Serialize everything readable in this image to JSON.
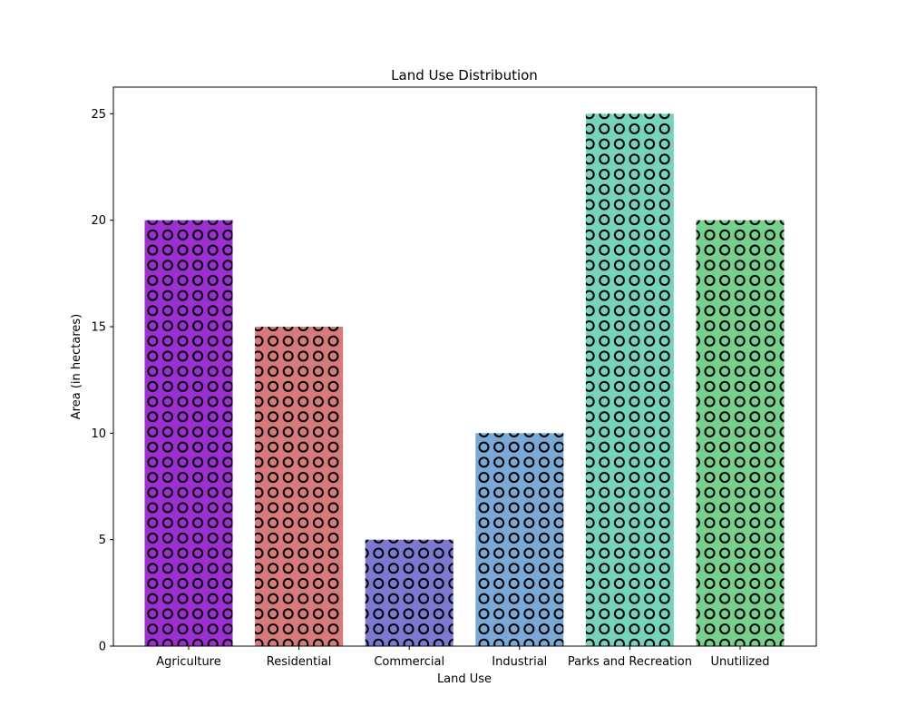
{
  "chart_data": {
    "type": "bar",
    "title": "Land Use Distribution",
    "xlabel": "Land Use",
    "ylabel": "Area (in hectares)",
    "categories": [
      "Agriculture",
      "Residential",
      "Commercial",
      "Industrial",
      "Parks and Recreation",
      "Unutilized"
    ],
    "values": [
      20,
      15,
      5,
      10,
      25,
      20
    ],
    "colors": [
      "#9b2fd1",
      "#d67a7a",
      "#7c7ad0",
      "#7aa9d6",
      "#76d3bd",
      "#77d08c"
    ],
    "ylim": [
      0,
      26.25
    ],
    "yticks": [
      0,
      5,
      10,
      15,
      20,
      25
    ],
    "grid": false,
    "hatch": "circles"
  }
}
